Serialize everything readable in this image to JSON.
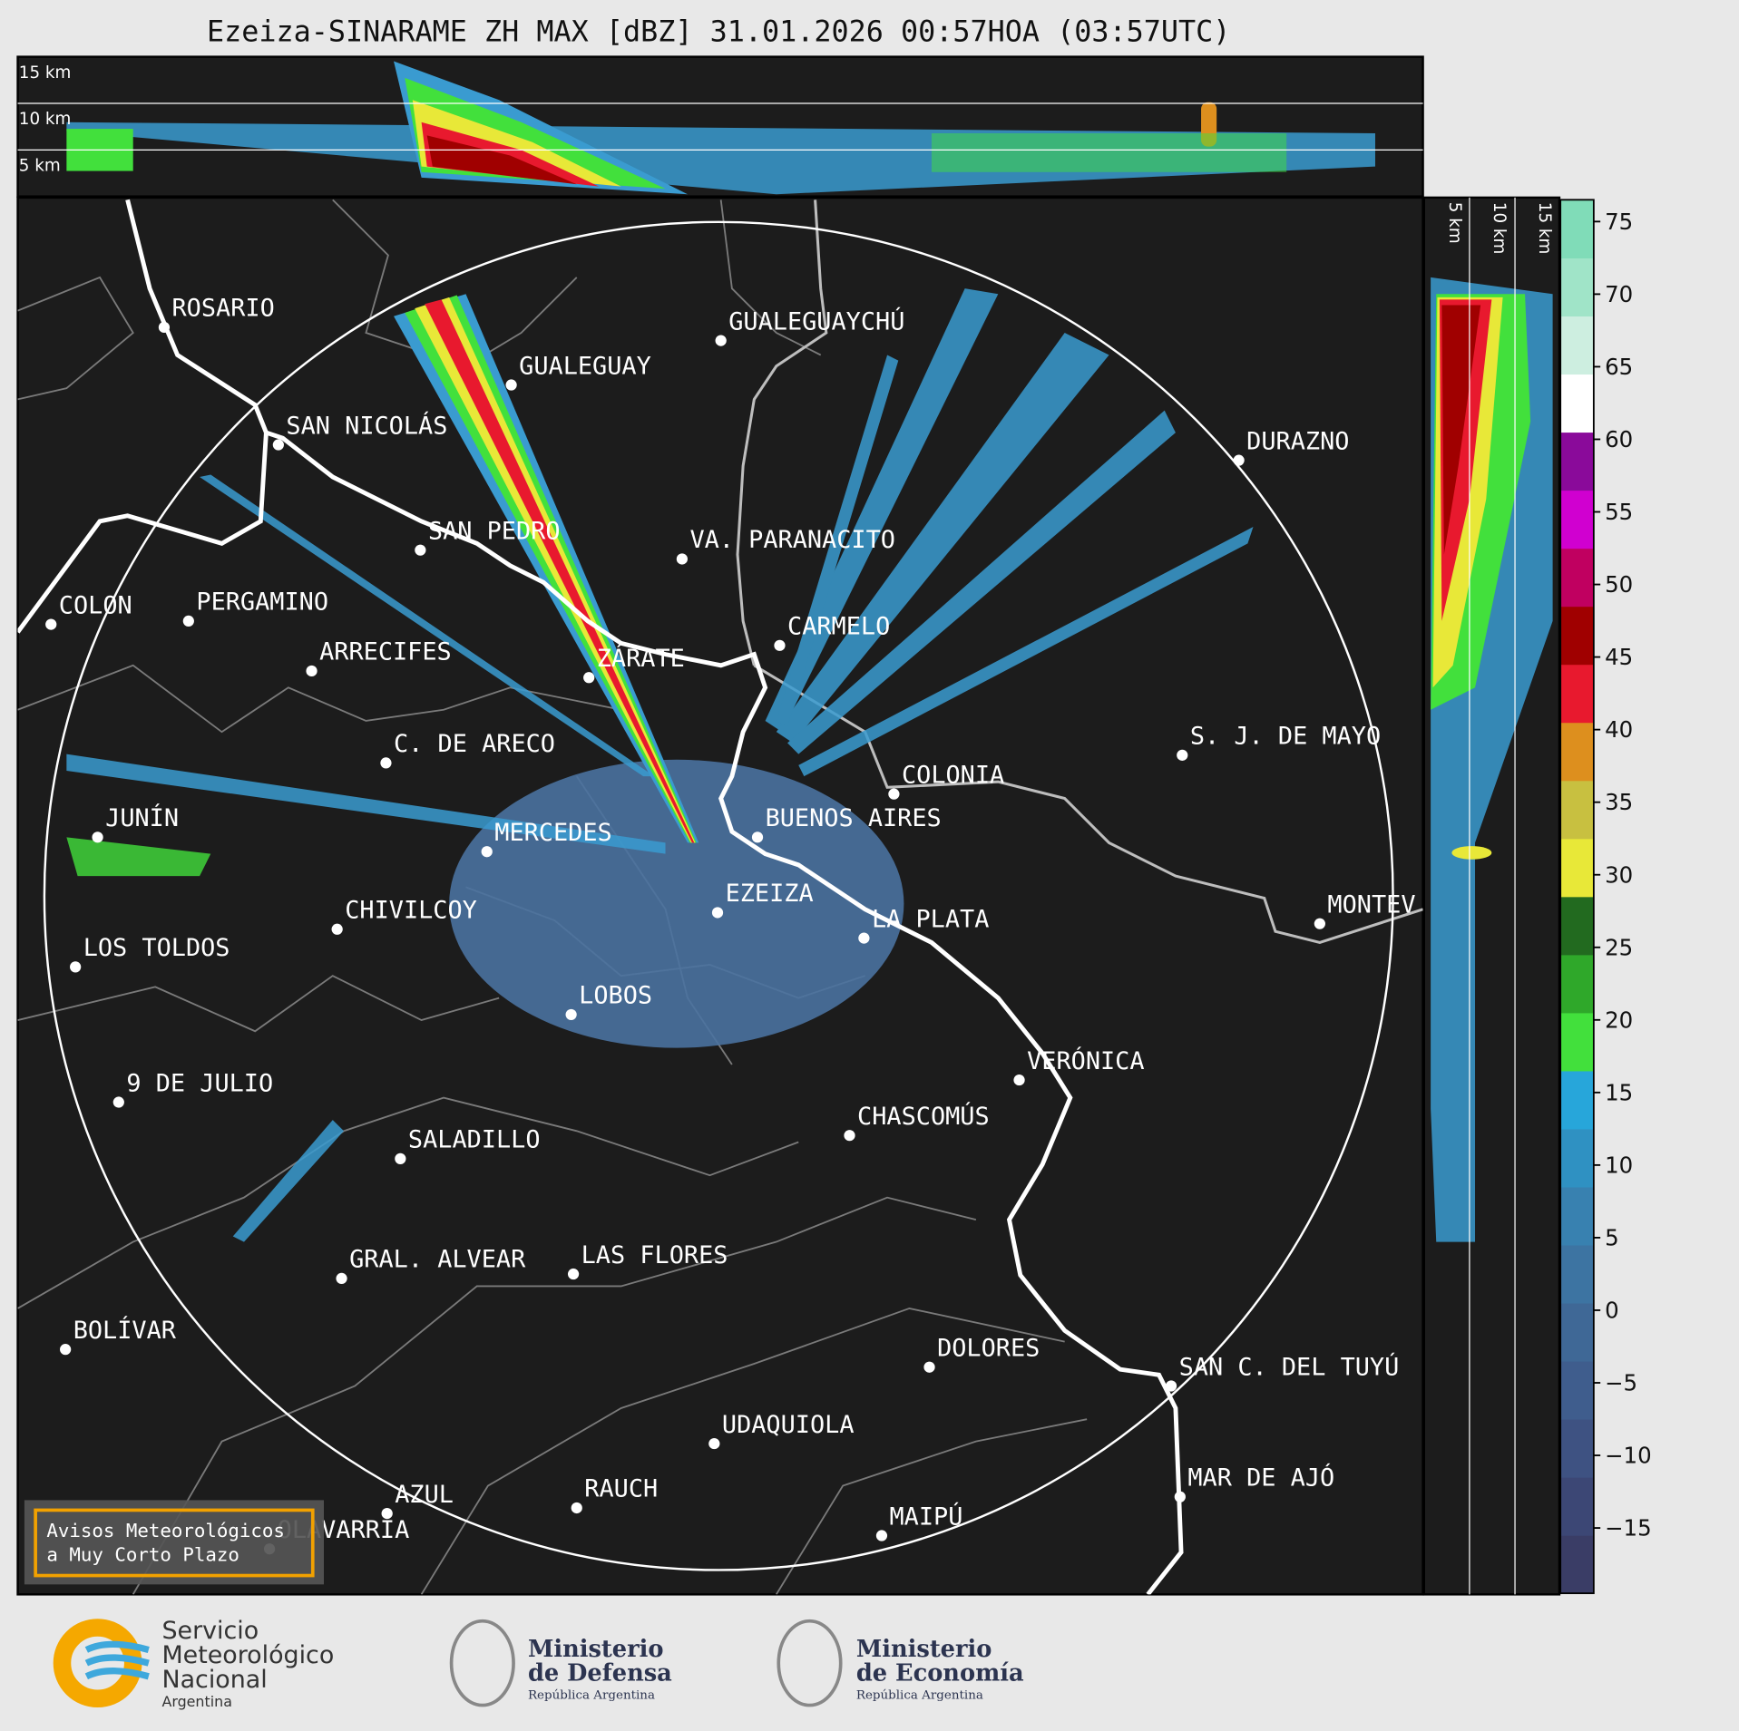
{
  "header": {
    "title": "Ezeiza-SINARAME ZH MAX [dBZ] 31.01.2026 00:57HOA (03:57UTC)"
  },
  "cross_section_top": {
    "altitude_labels": [
      "15 km",
      "10 km",
      "5 km"
    ]
  },
  "cross_section_right": {
    "altitude_labels": [
      "5 km",
      "10 km",
      "15 km"
    ]
  },
  "map": {
    "cities": [
      "ROSARIO",
      "GUALEGUAYCHÚ",
      "GUALEGUAY",
      "SAN NICOLÁS",
      "DURAZNO",
      "SAN PEDRO",
      "VA. PARANACITO",
      "COLON",
      "PERGAMINO",
      "CARMELO",
      "ARRECIFES",
      "ZÁRATE",
      "S. J. DE MAYO",
      "C. DE ARECO",
      "COLONIA",
      "JUNÍN",
      "BUENOS AIRES",
      "MERCEDES",
      "EZEIZA",
      "MONTEV",
      "CHIVILCOY",
      "LA PLATA",
      "LOS TOLDOS",
      "LOBOS",
      "VERÓNICA",
      "9 DE JULIO",
      "CHASCOMÚS",
      "SALADILLO",
      "GRAL. ALVEAR",
      "LAS FLORES",
      "BOLÍVAR",
      "DOLORES",
      "SAN C. DEL TUYÚ",
      "UDAQUIOLA",
      "MAR DE AJÓ",
      "AZUL",
      "RAUCH",
      "MAIPÚ",
      "OLAVARRÍA"
    ]
  },
  "notice": {
    "lines": [
      "Avisos Meteorológicos",
      "a Muy Corto Plazo"
    ]
  },
  "colorbar": {
    "ylim": [
      -19.5,
      76.5
    ],
    "yticks": [
      {
        "value": -15,
        "label": "−15"
      },
      {
        "value": -10,
        "label": "−10"
      },
      {
        "value": -5,
        "label": "−5"
      },
      0,
      5,
      10,
      15,
      20,
      25,
      30,
      35,
      40,
      45,
      50,
      55,
      60,
      65,
      70,
      75
    ],
    "colors": [
      "#3a3d66",
      "#3c4775",
      "#3e5282",
      "#3f5d8d",
      "#3f6896",
      "#3d74a2",
      "#3881b0",
      "#2f91c2",
      "#27a6da",
      "#42e03c",
      "#2fa82a",
      "#226a1f",
      "#e8e838",
      "#c8c040",
      "#dd8f1e",
      "#e8192e",
      "#a00000",
      "#c00060",
      "#d000d0",
      "#8a0a9a",
      "#ffffff",
      "#cdeee0",
      "#a0e4c8",
      "#80dcb8"
    ]
  },
  "footer": {
    "logos": [
      {
        "lines": [
          "Servicio",
          "Meteorológico",
          "Nacional",
          "Argentina"
        ]
      },
      {
        "lines": [
          "Ministerio",
          "de Defensa",
          "República Argentina"
        ]
      },
      {
        "lines": [
          "Ministerio",
          "de Economía",
          "República Argentina"
        ]
      }
    ]
  }
}
